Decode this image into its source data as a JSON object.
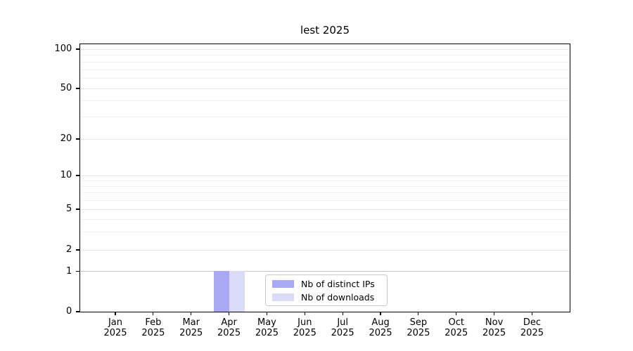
{
  "chart_data": {
    "type": "bar",
    "title": "lest 2025",
    "categories": [
      "Jan 2025",
      "Feb 2025",
      "Mar 2025",
      "Apr 2025",
      "May 2025",
      "Jun 2025",
      "Jul 2025",
      "Aug 2025",
      "Sep 2025",
      "Oct 2025",
      "Nov 2025",
      "Dec 2025"
    ],
    "series": [
      {
        "name": "Nb of distinct IPs",
        "color": "#a8a8f5",
        "values": [
          0,
          0,
          0,
          1,
          0,
          0,
          0,
          0,
          0,
          0,
          0,
          0
        ]
      },
      {
        "name": "Nb of downloads",
        "color": "#dbdbf8",
        "values": [
          0,
          0,
          0,
          1,
          0,
          0,
          0,
          0,
          0,
          0,
          0,
          0
        ]
      }
    ],
    "xlabel": "",
    "ylabel": "",
    "yscale": "symlog",
    "ylim": [
      0,
      110
    ],
    "y_major_ticks": [
      100,
      50,
      20,
      10,
      5,
      2,
      1,
      0
    ],
    "y_minor_ticks": [
      3,
      4,
      6,
      7,
      8,
      9,
      30,
      40,
      60,
      70,
      80,
      90
    ],
    "grid": "both",
    "legend_position": "lower center"
  },
  "colors": {
    "frame": "#000000",
    "grid_major": "#e6e6e6",
    "grid_minor": "#f1f1f1",
    "grid_unit_line": "#c6c6c6",
    "legend_border": "#c9c9c9"
  }
}
